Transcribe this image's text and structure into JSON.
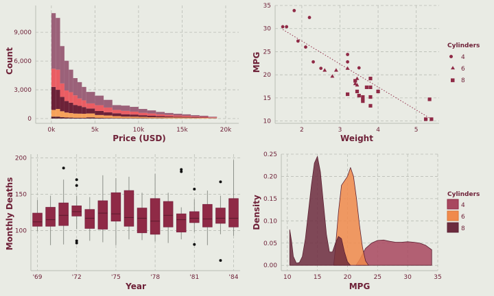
{
  "colors": {
    "background": "#e9ebe4",
    "text": "#6e2138",
    "wine": "#8f2a46",
    "c4": "#a8485f",
    "c6": "#f08a4b",
    "c8": "#6c2b3e",
    "s_mauve": "#9b6179",
    "s_coral": "#ea5d63",
    "s_wine": "#6c2238",
    "s_orange": "#f5a15a",
    "s_plum": "#522032"
  },
  "chart_data": [
    {
      "type": "bar",
      "subtype": "stacked-histogram",
      "xlabel": "Price (USD)",
      "ylabel": "Count",
      "xlim": [
        -1800,
        21500
      ],
      "ylim": [
        -500,
        11800
      ],
      "xticks": [
        0,
        5000,
        10000,
        15000,
        20000
      ],
      "xtick_labels": [
        "0k",
        "5k",
        "10k",
        "15k",
        "20k"
      ],
      "yticks": [
        0,
        3000,
        6000,
        9000
      ],
      "ytick_labels": [
        "0",
        "3,000",
        "6,000",
        "9,000"
      ],
      "bin_edges": [
        0,
        500,
        1000,
        1500,
        2000,
        2500,
        3000,
        3500,
        4000,
        5000,
        6000,
        7000,
        8000,
        9000,
        10000,
        11000,
        12000,
        13000,
        14000,
        15000,
        16000,
        17000,
        18000,
        19000
      ],
      "series": [
        {
          "color": "s_plum",
          "values": [
            200,
            200,
            140,
            110,
            100,
            80,
            80,
            70,
            120,
            70,
            60,
            50,
            40,
            40,
            40,
            30,
            30,
            20,
            20,
            20,
            20,
            10,
            10
          ]
        },
        {
          "color": "s_orange",
          "values": [
            700,
            800,
            620,
            520,
            470,
            440,
            430,
            430,
            410,
            300,
            260,
            200,
            160,
            150,
            130,
            110,
            100,
            100,
            90,
            80,
            60,
            60,
            40
          ]
        },
        {
          "color": "s_wine",
          "values": [
            2400,
            2000,
            1500,
            1200,
            1080,
            900,
            820,
            700,
            520,
            420,
            330,
            300,
            250,
            230,
            180,
            170,
            130,
            100,
            80,
            70,
            60,
            40,
            30
          ]
        },
        {
          "color": "s_coral",
          "values": [
            1900,
            2100,
            1400,
            1100,
            1100,
            1000,
            770,
            700,
            530,
            600,
            500,
            350,
            350,
            300,
            250,
            220,
            180,
            160,
            130,
            120,
            80,
            70,
            50
          ]
        },
        {
          "color": "s_mauve",
          "values": [
            5800,
            5400,
            3900,
            3100,
            2350,
            1800,
            1700,
            1400,
            1200,
            1000,
            800,
            500,
            550,
            500,
            400,
            320,
            250,
            200,
            180,
            150,
            130,
            110,
            60
          ]
        }
      ]
    },
    {
      "type": "scatter",
      "xlabel": "Weight",
      "ylabel": "MPG",
      "xlim": [
        1.3,
        5.6
      ],
      "ylim": [
        9.5,
        35
      ],
      "xticks": [
        1,
        2,
        3,
        4,
        5
      ],
      "yticks": [
        10,
        15,
        20,
        25,
        30,
        35
      ],
      "legend": {
        "title": "Cylinders",
        "position": "right",
        "entries": [
          "4",
          "6",
          "8"
        ]
      },
      "series": [
        {
          "name": "4",
          "marker": "circle",
          "points": [
            [
              1.5,
              30.4
            ],
            [
              1.6,
              30.4
            ],
            [
              1.8,
              33.9
            ],
            [
              1.9,
              27.3
            ],
            [
              2.1,
              26.0
            ],
            [
              2.2,
              32.4
            ],
            [
              2.3,
              22.8
            ],
            [
              2.5,
              21.4
            ],
            [
              3.2,
              24.4
            ],
            [
              3.2,
              22.8
            ],
            [
              3.5,
              21.5
            ]
          ]
        },
        {
          "name": "6",
          "marker": "triangle",
          "points": [
            [
              2.6,
              21.0
            ],
            [
              2.9,
              21.0
            ],
            [
              3.2,
              21.4
            ],
            [
              3.4,
              18.1
            ],
            [
              3.45,
              19.2
            ],
            [
              3.45,
              17.8
            ],
            [
              2.8,
              19.7
            ]
          ]
        },
        {
          "name": "8",
          "marker": "square",
          "points": [
            [
              3.4,
              18.7
            ],
            [
              3.6,
              14.3
            ],
            [
              3.7,
              17.3
            ],
            [
              3.8,
              15.2
            ],
            [
              3.8,
              13.3
            ],
            [
              3.2,
              15.8
            ],
            [
              3.45,
              16.4
            ],
            [
              3.5,
              15.5
            ],
            [
              3.6,
              15.2
            ],
            [
              3.6,
              14.7
            ],
            [
              3.8,
              19.2
            ],
            [
              4.0,
              16.4
            ],
            [
              3.8,
              17.3
            ],
            [
              5.25,
              10.4
            ],
            [
              5.4,
              10.4
            ],
            [
              5.35,
              14.7
            ]
          ]
        }
      ],
      "trendline": {
        "style": "dotted",
        "from": [
          1.5,
          29.8
        ],
        "to": [
          5.4,
          10.4
        ]
      }
    },
    {
      "type": "boxplot",
      "xlabel": "Year",
      "ylabel": "Monthly Deaths",
      "xlim": [
        0,
        16
      ],
      "ylim": [
        45,
        205
      ],
      "xticks": [
        0.5,
        3.5,
        6.5,
        9.5,
        12.5,
        15.5
      ],
      "xtick_labels": [
        "'69",
        "'72",
        "'75",
        "'78",
        "'81",
        "'84"
      ],
      "yticks": [
        100,
        150,
        200
      ],
      "boxes": [
        {
          "q1": 106,
          "median": 112,
          "q3": 124,
          "whisker_low": 99,
          "whisker_high": 142
        },
        {
          "q1": 106,
          "median": 115,
          "q3": 132,
          "whisker_low": 80,
          "whisker_high": 148
        },
        {
          "q1": 107,
          "median": 121,
          "q3": 138,
          "whisker_low": 81,
          "whisker_high": 170,
          "outliers": [
            186
          ]
        },
        {
          "q1": 120,
          "median": 126,
          "q3": 134,
          "whisker_low": 102,
          "whisker_high": 148,
          "outliers": [
            170,
            162,
            86,
            83
          ]
        },
        {
          "q1": 103,
          "median": 117,
          "q3": 129,
          "whisker_low": 86,
          "whisker_high": 146
        },
        {
          "q1": 102,
          "median": 124,
          "q3": 141,
          "whisker_low": 84,
          "whisker_high": 176
        },
        {
          "q1": 113,
          "median": 123,
          "q3": 152,
          "whisker_low": 80,
          "whisker_high": 172
        },
        {
          "q1": 106,
          "median": 118,
          "q3": 155,
          "whisker_low": 88,
          "whisker_high": 174
        },
        {
          "q1": 97,
          "median": 117,
          "q3": 131,
          "whisker_low": 87,
          "whisker_high": 152
        },
        {
          "q1": 95,
          "median": 113,
          "q3": 144,
          "whisker_low": 85,
          "whisker_high": 178
        },
        {
          "q1": 105,
          "median": 121,
          "q3": 140,
          "whisker_low": 83,
          "whisker_high": 152
        },
        {
          "q1": 98,
          "median": 115,
          "q3": 123,
          "whisker_low": 88,
          "whisker_high": 132,
          "outliers": [
            184,
            181
          ]
        },
        {
          "q1": 111,
          "median": 117,
          "q3": 126,
          "whisker_low": 98,
          "whisker_high": 143,
          "outliers": [
            157,
            81
          ]
        },
        {
          "q1": 105,
          "median": 116,
          "q3": 136,
          "whisker_low": 80,
          "whisker_high": 155
        },
        {
          "q1": 110,
          "median": 117,
          "q3": 131,
          "whisker_low": 95,
          "whisker_high": 148,
          "outliers": [
            167,
            59
          ]
        },
        {
          "q1": 105,
          "median": 117,
          "q3": 144,
          "whisker_low": 93,
          "whisker_high": 197
        }
      ]
    },
    {
      "type": "area",
      "subtype": "kde",
      "xlabel": "MPG",
      "ylabel": "Density",
      "xlim": [
        9,
        35
      ],
      "ylim": [
        -0.012,
        0.25
      ],
      "xticks": [
        10,
        15,
        20,
        25,
        30,
        35
      ],
      "yticks": [
        0.0,
        0.05,
        0.1,
        0.15,
        0.2,
        0.25
      ],
      "ytick_labels": [
        "0.00",
        "0.05",
        "0.10",
        "0.15",
        "0.20",
        "0.25"
      ],
      "legend": {
        "title": "Cylinders",
        "position": "right",
        "entries": [
          "4",
          "6",
          "8"
        ]
      },
      "series": [
        {
          "name": "4",
          "x": [
            21.4,
            22,
            22.5,
            23,
            24,
            25,
            26,
            27,
            28,
            29,
            30,
            31,
            32,
            33,
            34
          ],
          "y": [
            0.0,
            0.012,
            0.025,
            0.038,
            0.05,
            0.056,
            0.057,
            0.054,
            0.052,
            0.052,
            0.053,
            0.052,
            0.05,
            0.045,
            0.035
          ]
        },
        {
          "name": "6",
          "x": [
            17.7,
            18,
            18.5,
            19,
            19.5,
            20,
            20.5,
            21,
            21.5,
            22,
            22.5,
            23,
            23.5
          ],
          "y": [
            0.0,
            0.04,
            0.12,
            0.18,
            0.19,
            0.2,
            0.22,
            0.2,
            0.15,
            0.09,
            0.04,
            0.01,
            0.0
          ]
        },
        {
          "name": "8",
          "x": [
            10.4,
            10.7,
            11,
            11.5,
            12,
            12.5,
            13,
            13.5,
            14,
            14.5,
            15,
            15.5,
            16,
            16.5,
            17,
            17.5,
            18,
            18.5,
            19,
            19.5,
            20,
            20.5
          ],
          "y": [
            0.08,
            0.055,
            0.02,
            0.005,
            0.006,
            0.02,
            0.06,
            0.12,
            0.18,
            0.23,
            0.245,
            0.21,
            0.14,
            0.07,
            0.03,
            0.03,
            0.05,
            0.065,
            0.06,
            0.03,
            0.008,
            0.0
          ]
        }
      ]
    }
  ]
}
